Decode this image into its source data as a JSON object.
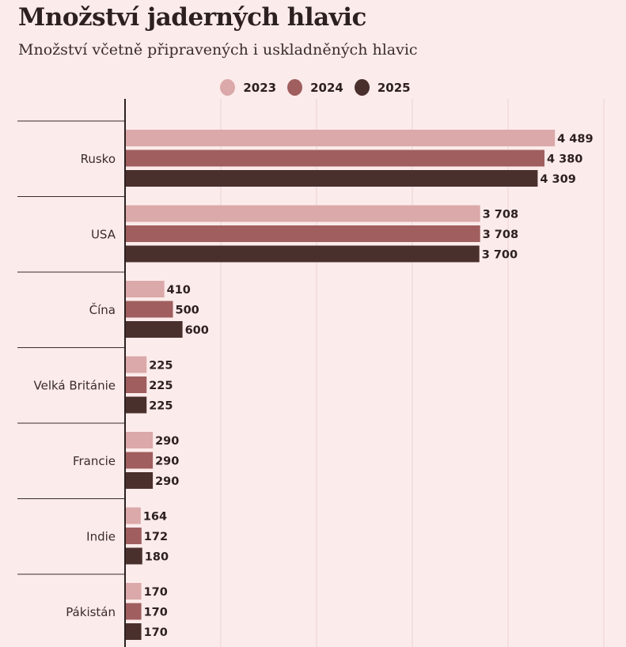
{
  "title": "Množství jaderných hlavic",
  "subtitle": "Množství včetně připravených i uskladněných hlavic",
  "chart_data": {
    "type": "bar",
    "orientation": "horizontal",
    "title": "Množství jaderných hlavic",
    "subtitle": "Množství včetně připravených i uskladněných hlavic",
    "categories": [
      "Rusko",
      "USA",
      "Čína",
      "Velká Británie",
      "Francie",
      "Indie",
      "Pákistán"
    ],
    "series": [
      {
        "name": "2023",
        "color": "#dba9a9",
        "values": [
          4489,
          3708,
          410,
          225,
          290,
          164,
          170
        ],
        "labels": [
          "4 489",
          "3 708",
          "410",
          "225",
          "290",
          "164",
          "170"
        ]
      },
      {
        "name": "2024",
        "color": "#a05e5e",
        "values": [
          4380,
          3708,
          500,
          225,
          290,
          172,
          170
        ],
        "labels": [
          "4 380",
          "3 708",
          "500",
          "225",
          "290",
          "172",
          "170"
        ]
      },
      {
        "name": "2025",
        "color": "#4a302d",
        "values": [
          4309,
          3700,
          600,
          225,
          290,
          180,
          170
        ],
        "labels": [
          "4 309",
          "3 700",
          "600",
          "225",
          "290",
          "180",
          "170"
        ]
      }
    ],
    "xlim": [
      0,
      5000
    ],
    "grid": true,
    "legend": "top-center"
  }
}
